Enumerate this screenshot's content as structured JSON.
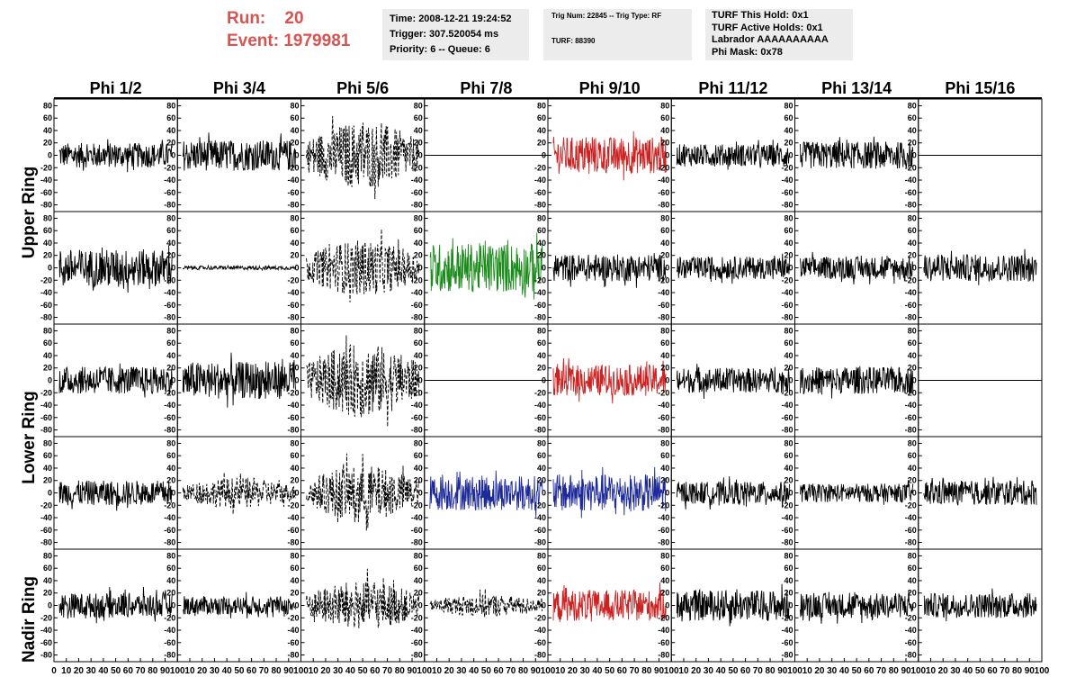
{
  "header": {
    "run_label": "Run:",
    "run_value": "20",
    "event_label": "Event:",
    "event_value": "1979981",
    "time_box": [
      "Time: 2008-12-21 19:24:52",
      "Trigger: 307.520054 ms",
      "Priority: 6 -- Queue: 6"
    ],
    "trig_box": [
      "Trig Num: 22845 -- Trig Type: RF",
      "TURF: 88390"
    ],
    "turf_box": [
      "TURF This Hold: 0x1",
      "TURF Active Holds: 0x1",
      "Labrador AAAAAAAAAA",
      "Phi Mask: 0x78"
    ]
  },
  "columns": [
    "Phi 1/2",
    "Phi 3/4",
    "Phi 5/6",
    "Phi 7/8",
    "Phi 9/10",
    "Phi 11/12",
    "Phi 13/14",
    "Phi 15/16"
  ],
  "ring_labels": [
    "Upper Ring",
    "Lower Ring",
    "Nadir Ring"
  ],
  "colors": {
    "red": "#cc2222",
    "green": "#1a8a1a",
    "blue": "#1e2a9a",
    "black": "#000000",
    "title_red": "#d95450"
  },
  "chart_data": {
    "type": "line",
    "y_ticks": [
      80,
      60,
      40,
      20,
      0,
      -20,
      -40,
      -60,
      -80
    ],
    "x_ticks": [
      "0",
      "10",
      "20",
      "30",
      "40",
      "50",
      "60",
      "70",
      "80",
      "90",
      "100"
    ],
    "ylim": [
      -85,
      85
    ],
    "xlim": [
      0,
      100
    ],
    "panels": [
      [
        {
          "style": "solid",
          "color": "black",
          "amp": 20
        },
        {
          "style": "solid",
          "color": "black",
          "amp": 25
        },
        {
          "style": "dashed",
          "color": "black",
          "amp": 55
        },
        {
          "style": "flat",
          "color": "black",
          "amp": 0
        },
        {
          "style": "solid",
          "color": "red",
          "amp": 30
        },
        {
          "style": "solid",
          "color": "black",
          "amp": 18
        },
        {
          "style": "solid",
          "color": "black",
          "amp": 22
        },
        {
          "style": "flat",
          "color": "black",
          "amp": 0
        }
      ],
      [
        {
          "style": "solid",
          "color": "black",
          "amp": 30
        },
        {
          "style": "solid",
          "color": "black",
          "amp": 3
        },
        {
          "style": "dashed",
          "color": "black",
          "amp": 45
        },
        {
          "style": "solid",
          "color": "green",
          "amp": 40
        },
        {
          "style": "solid",
          "color": "black",
          "amp": 22
        },
        {
          "style": "solid",
          "color": "black",
          "amp": 18
        },
        {
          "style": "solid",
          "color": "black",
          "amp": 18
        },
        {
          "style": "solid",
          "color": "black",
          "amp": 22
        }
      ],
      [
        {
          "style": "solid",
          "color": "black",
          "amp": 22
        },
        {
          "style": "solid",
          "color": "black",
          "amp": 30
        },
        {
          "style": "dashed",
          "color": "black",
          "amp": 60
        },
        {
          "style": "flat",
          "color": "black",
          "amp": 0
        },
        {
          "style": "solid",
          "color": "red",
          "amp": 25
        },
        {
          "style": "solid",
          "color": "black",
          "amp": 20
        },
        {
          "style": "solid",
          "color": "black",
          "amp": 22
        },
        {
          "style": "flat",
          "color": "black",
          "amp": 0
        }
      ],
      [
        {
          "style": "solid",
          "color": "black",
          "amp": 20
        },
        {
          "style": "dashed",
          "color": "black",
          "amp": 25
        },
        {
          "style": "dashed",
          "color": "black",
          "amp": 45
        },
        {
          "style": "solid",
          "color": "blue",
          "amp": 28
        },
        {
          "style": "solid",
          "color": "blue",
          "amp": 30
        },
        {
          "style": "solid",
          "color": "black",
          "amp": 18
        },
        {
          "style": "solid",
          "color": "black",
          "amp": 15
        },
        {
          "style": "solid",
          "color": "black",
          "amp": 20
        }
      ],
      [
        {
          "style": "solid",
          "color": "black",
          "amp": 20
        },
        {
          "style": "solid",
          "color": "black",
          "amp": 15
        },
        {
          "style": "dashed",
          "color": "black",
          "amp": 40
        },
        {
          "style": "dashed",
          "color": "black",
          "amp": 18
        },
        {
          "style": "solid",
          "color": "red",
          "amp": 25
        },
        {
          "style": "solid",
          "color": "black",
          "amp": 25
        },
        {
          "style": "solid",
          "color": "black",
          "amp": 20
        },
        {
          "style": "solid",
          "color": "black",
          "amp": 20
        }
      ]
    ]
  }
}
